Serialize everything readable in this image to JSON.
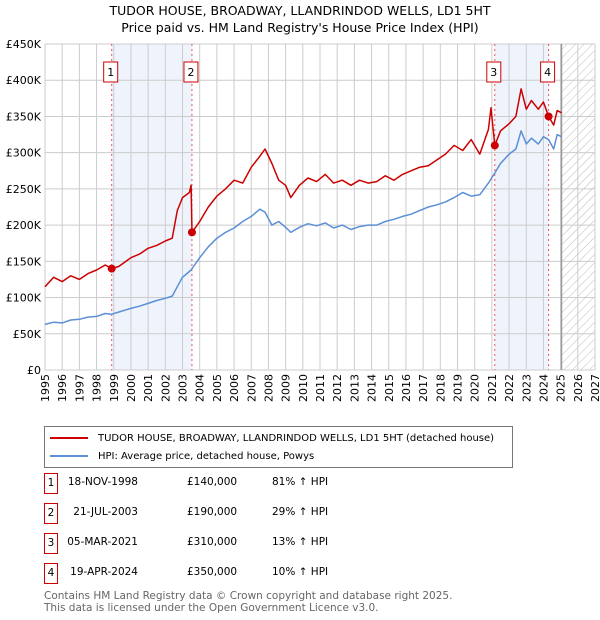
{
  "title": "TUDOR HOUSE, BROADWAY, LLANDRINDOD WELLS, LD1 5HT",
  "subtitle": "Price paid vs. HM Land Registry's House Price Index (HPI)",
  "colors": {
    "property": "#cc0000",
    "hpi": "#5b8fd6",
    "band": "#eef3fc"
  },
  "chart_data": {
    "type": "line",
    "ylabel": "",
    "xlabel": "",
    "xlim": [
      1995,
      2027
    ],
    "ylim": [
      0,
      450000
    ],
    "x_ticks": [
      "1995",
      "1996",
      "1997",
      "1998",
      "1999",
      "2000",
      "2001",
      "2002",
      "2003",
      "2004",
      "2005",
      "2006",
      "2007",
      "2008",
      "2009",
      "2010",
      "2011",
      "2012",
      "2013",
      "2014",
      "2015",
      "2016",
      "2017",
      "2018",
      "2019",
      "2020",
      "2021",
      "2022",
      "2023",
      "2024",
      "2025",
      "2026",
      "2027"
    ],
    "y_ticks": [
      {
        "v": 0,
        "label": "£0"
      },
      {
        "v": 50000,
        "label": "£50K"
      },
      {
        "v": 100000,
        "label": "£100K"
      },
      {
        "v": 150000,
        "label": "£150K"
      },
      {
        "v": 200000,
        "label": "£200K"
      },
      {
        "v": 250000,
        "label": "£250K"
      },
      {
        "v": 300000,
        "label": "£300K"
      },
      {
        "v": 350000,
        "label": "£350K"
      },
      {
        "v": 400000,
        "label": "£400K"
      },
      {
        "v": 450000,
        "label": "£450K"
      }
    ],
    "forecast_from": 2025.05,
    "series": [
      {
        "name": "TUDOR HOUSE, BROADWAY, LLANDRINDOD WELLS, LD1 5HT (detached house)",
        "x": [
          1995,
          1995.5,
          1996,
          1996.5,
          1997,
          1997.5,
          1998,
          1998.5,
          1998.88,
          1999.3,
          2000,
          2000.5,
          2001,
          2001.5,
          2002,
          2002.4,
          2002.7,
          2003,
          2003.4,
          2003.5,
          2003.55,
          2004,
          2004.5,
          2005,
          2005.5,
          2006,
          2006.5,
          2007,
          2007.5,
          2007.8,
          2008.2,
          2008.6,
          2009,
          2009.3,
          2009.8,
          2010.3,
          2010.8,
          2011.3,
          2011.8,
          2012.3,
          2012.8,
          2013.3,
          2013.8,
          2014.3,
          2014.8,
          2015.3,
          2015.8,
          2016.3,
          2016.8,
          2017.3,
          2017.8,
          2018.3,
          2018.8,
          2019.3,
          2019.8,
          2020.3,
          2020.8,
          2020.95,
          2021.17,
          2021.5,
          2022,
          2022.4,
          2022.7,
          2023,
          2023.3,
          2023.7,
          2024,
          2024.3,
          2024.6,
          2024.8,
          2025.05
        ],
        "values": [
          115000,
          128000,
          122000,
          130000,
          125000,
          133000,
          138000,
          145000,
          140000,
          143000,
          155000,
          160000,
          168000,
          172000,
          178000,
          182000,
          220000,
          238000,
          245000,
          255000,
          190000,
          205000,
          225000,
          240000,
          250000,
          262000,
          258000,
          280000,
          295000,
          305000,
          285000,
          262000,
          255000,
          238000,
          255000,
          265000,
          260000,
          270000,
          258000,
          262000,
          255000,
          262000,
          258000,
          260000,
          268000,
          262000,
          270000,
          275000,
          280000,
          282000,
          290000,
          298000,
          310000,
          303000,
          318000,
          298000,
          332000,
          362000,
          310000,
          330000,
          340000,
          350000,
          388000,
          360000,
          372000,
          360000,
          370000,
          350000,
          338000,
          358000,
          355000
        ]
      },
      {
        "name": "HPI: Average price, detached house, Powys",
        "x": [
          1995,
          1995.5,
          1996,
          1996.5,
          1997,
          1997.5,
          1998,
          1998.5,
          1998.88,
          1999.3,
          2000,
          2000.5,
          2001,
          2001.5,
          2002,
          2002.4,
          2002.7,
          2003,
          2003.5,
          2004,
          2004.5,
          2005,
          2005.5,
          2006,
          2006.5,
          2007,
          2007.5,
          2007.8,
          2008.2,
          2008.6,
          2009,
          2009.3,
          2009.8,
          2010.3,
          2010.8,
          2011.3,
          2011.8,
          2012.3,
          2012.8,
          2013.3,
          2013.8,
          2014.3,
          2014.8,
          2015.3,
          2015.8,
          2016.3,
          2016.8,
          2017.3,
          2017.8,
          2018.3,
          2018.8,
          2019.3,
          2019.8,
          2020.3,
          2020.8,
          2021.17,
          2021.5,
          2022,
          2022.4,
          2022.7,
          2023,
          2023.3,
          2023.7,
          2024,
          2024.3,
          2024.6,
          2024.8,
          2025.05
        ],
        "values": [
          63000,
          66000,
          65000,
          69000,
          70000,
          73000,
          74000,
          78000,
          77000,
          80000,
          85000,
          88000,
          92000,
          96000,
          99000,
          102000,
          115000,
          128000,
          138000,
          155000,
          170000,
          182000,
          190000,
          196000,
          205000,
          212000,
          222000,
          218000,
          200000,
          205000,
          197000,
          190000,
          197000,
          202000,
          199000,
          203000,
          196000,
          200000,
          194000,
          198000,
          200000,
          200000,
          205000,
          208000,
          212000,
          215000,
          220000,
          225000,
          228000,
          232000,
          238000,
          245000,
          240000,
          242000,
          258000,
          272000,
          285000,
          298000,
          305000,
          330000,
          312000,
          320000,
          312000,
          322000,
          318000,
          305000,
          325000,
          322000
        ]
      }
    ],
    "sales": [
      {
        "n": "1",
        "date": "18-NOV-1998",
        "x": 1998.88,
        "price": "£140,000",
        "value": 140000,
        "hpi": "81% ↑ HPI"
      },
      {
        "n": "2",
        "date": "21-JUL-2003",
        "x": 2003.55,
        "price": "£190,000",
        "value": 190000,
        "hpi": "29% ↑ HPI"
      },
      {
        "n": "3",
        "date": "05-MAR-2021",
        "x": 2021.17,
        "price": "£310,000",
        "value": 310000,
        "hpi": "13% ↑ HPI"
      },
      {
        "n": "4",
        "date": "19-APR-2024",
        "x": 2024.3,
        "price": "£350,000",
        "value": 350000,
        "hpi": "10% ↑ HPI"
      }
    ]
  },
  "legend": {
    "property": "TUDOR HOUSE, BROADWAY, LLANDRINDOD WELLS, LD1 5HT (detached house)",
    "hpi": "HPI: Average price, detached house, Powys"
  },
  "footer": {
    "line1": "Contains HM Land Registry data © Crown copyright and database right 2025.",
    "line2": "This data is licensed under the Open Government Licence v3.0."
  }
}
